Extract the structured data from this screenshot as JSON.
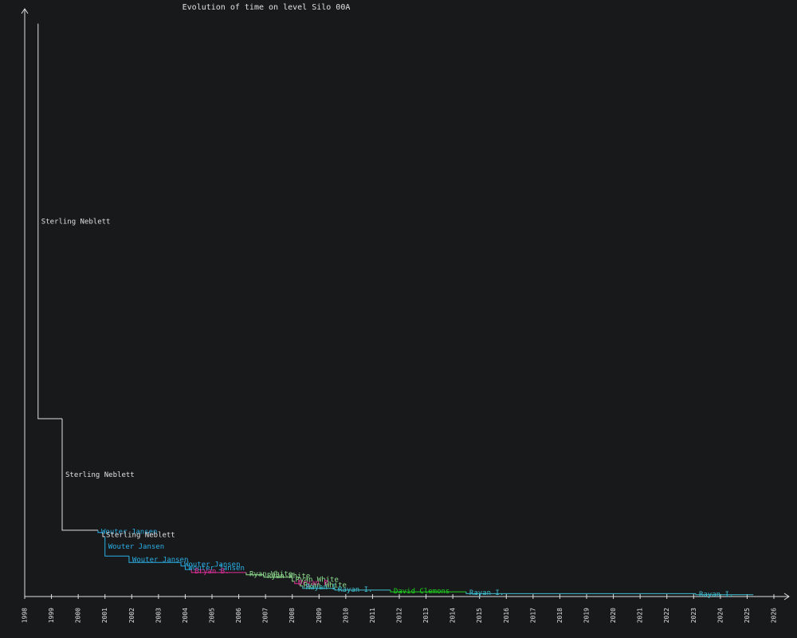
{
  "chart_data": {
    "type": "step",
    "title": "Evolution of time on level Silo 00A",
    "xlim": [
      1998,
      2026
    ],
    "xticks": [
      1998,
      1999,
      2000,
      2001,
      2002,
      2003,
      2004,
      2005,
      2006,
      2007,
      2008,
      2009,
      2010,
      2011,
      2012,
      2013,
      2014,
      2015,
      2016,
      2017,
      2018,
      2019,
      2020,
      2021,
      2022,
      2023,
      2024,
      2025,
      2026
    ],
    "ylim": [
      0,
      100
    ],
    "x": [
      1998.5,
      1998.5,
      1999.4,
      2000.74,
      2000.92,
      2001.0,
      2001.9,
      2003.84,
      2004.0,
      2004.23,
      2006.28,
      2006.94,
      2008.0,
      2008.09,
      2008.3,
      2008.39,
      2009.59,
      2011.67,
      2014.5,
      2023.08
    ],
    "x_end": 2025.23,
    "values": [
      97.6,
      30.3,
      11.3,
      10.9,
      10.2,
      6.9,
      5.8,
      5.2,
      4.6,
      4.1,
      3.7,
      3.3,
      2.6,
      2.2,
      1.8,
      1.4,
      1.1,
      0.8,
      0.5,
      0.3
    ],
    "labels": [
      null,
      "Sterling Neblett",
      "Sterling Neblett",
      "Wouter Jansen",
      "Sterling Neblett",
      "Wouter Jansen",
      "Wouter Jansen",
      "Wouter Jansen",
      "Wouter Jansen",
      "Bryan B.",
      "Ryan White",
      "Ryan White",
      "Ryan White",
      "Bryan B.",
      "Ryan White",
      "Rayan I.",
      "Rayan I.",
      "David Clemons",
      "Rayan I.",
      "Rayan I."
    ],
    "colors": [
      "#e02030",
      "#e0e0e0",
      "#e0e0e0",
      "#2ab0e8",
      "#e0e0e0",
      "#2ab0e8",
      "#2ab0e8",
      "#2ab0e8",
      "#2ab0e8",
      "#e0309a",
      "#90e090",
      "#90e090",
      "#90e090",
      "#e0309a",
      "#90e090",
      "#40c0d0",
      "#40c0d0",
      "#20d020",
      "#40c0d0",
      "#40c0d0"
    ]
  }
}
